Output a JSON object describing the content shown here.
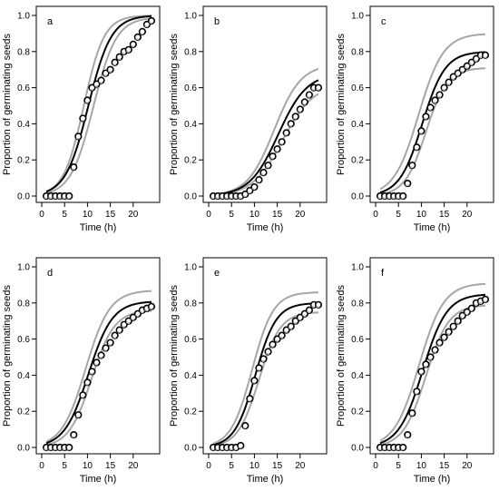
{
  "figure": {
    "y_axis_title": "Proportion of germinating seeds",
    "x_axis_title": "Time (h)"
  },
  "colors": {
    "fit_line": "#000000",
    "band_line": "#a6a6a6",
    "marker_stroke": "#000000",
    "marker_fill": "#ffffff",
    "marker_shade": "#bdbdbd"
  },
  "chart_data": [
    {
      "type": "scatter",
      "panel_label": "a",
      "xlabel": "Time (h)",
      "ylabel": "Proportion of germinating seeds",
      "xlim": [
        0,
        25
      ],
      "ylim": [
        0,
        1.0
      ],
      "x_ticks": [
        0,
        5,
        10,
        15,
        20
      ],
      "y_ticks": [
        0.0,
        0.2,
        0.4,
        0.6,
        0.8,
        1.0
      ],
      "x_tick_labels": [
        "0",
        "5",
        "10",
        "15",
        "20"
      ],
      "y_tick_labels": [
        "0.0",
        "0.2",
        "0.4",
        "0.6",
        "0.8",
        "1.0"
      ],
      "observed": {
        "x": [
          1,
          2,
          3,
          4,
          5,
          6,
          7,
          8,
          9,
          10,
          11,
          12,
          13,
          14,
          15,
          16,
          17,
          18,
          19,
          20,
          21,
          22,
          23,
          24
        ],
        "y": [
          0.0,
          0.0,
          0.0,
          0.0,
          0.0,
          0.0,
          0.16,
          0.33,
          0.43,
          0.53,
          0.6,
          0.62,
          0.64,
          0.68,
          0.7,
          0.74,
          0.77,
          0.8,
          0.81,
          0.84,
          0.88,
          0.91,
          0.95,
          0.97
        ]
      },
      "fit": {
        "type": "logistic",
        "asymptote": 1.0,
        "t50": 10.2,
        "slope": 0.4
      },
      "band_upper": {
        "type": "logistic",
        "asymptote": 1.0,
        "t50": 9.2,
        "slope": 0.45
      },
      "band_lower": {
        "type": "logistic",
        "asymptote": 0.99,
        "t50": 11.3,
        "slope": 0.4
      }
    },
    {
      "type": "scatter",
      "panel_label": "b",
      "xlabel": "Time (h)",
      "ylabel": "Proportion of germinating seeds",
      "xlim": [
        0,
        25
      ],
      "ylim": [
        0,
        1.0
      ],
      "x_ticks": [
        0,
        5,
        10,
        15,
        20
      ],
      "y_ticks": [
        0.0,
        0.2,
        0.4,
        0.6,
        0.8,
        1.0
      ],
      "x_tick_labels": [
        "0",
        "5",
        "10",
        "15",
        "20"
      ],
      "y_tick_labels": [
        "0.0",
        "0.2",
        "0.4",
        "0.6",
        "0.8",
        "1.0"
      ],
      "observed": {
        "x": [
          1,
          2,
          3,
          4,
          5,
          6,
          7,
          8,
          9,
          10,
          11,
          12,
          13,
          14,
          15,
          16,
          17,
          18,
          19,
          20,
          21,
          22,
          23,
          24
        ],
        "y": [
          0.0,
          0.0,
          0.0,
          0.0,
          0.0,
          0.0,
          0.0,
          0.01,
          0.03,
          0.05,
          0.09,
          0.13,
          0.17,
          0.22,
          0.26,
          0.3,
          0.35,
          0.4,
          0.44,
          0.48,
          0.52,
          0.56,
          0.6,
          0.6
        ]
      },
      "fit": {
        "type": "logistic",
        "asymptote": 0.68,
        "t50": 15.2,
        "slope": 0.32
      },
      "band_upper": {
        "type": "logistic",
        "asymptote": 0.73,
        "t50": 14.3,
        "slope": 0.34
      },
      "band_lower": {
        "type": "logistic",
        "asymptote": 0.62,
        "t50": 16.2,
        "slope": 0.3
      }
    },
    {
      "type": "scatter",
      "panel_label": "c",
      "xlabel": "Time (h)",
      "ylabel": "Proportion of germinating seeds",
      "xlim": [
        0,
        25
      ],
      "ylim": [
        0,
        1.0
      ],
      "x_ticks": [
        0,
        5,
        10,
        15,
        20
      ],
      "y_ticks": [
        0.0,
        0.2,
        0.4,
        0.6,
        0.8,
        1.0
      ],
      "x_tick_labels": [
        "0",
        "5",
        "10",
        "15",
        "20"
      ],
      "y_tick_labels": [
        "0.0",
        "0.2",
        "0.4",
        "0.6",
        "0.8",
        "1.0"
      ],
      "observed": {
        "x": [
          1,
          2,
          3,
          4,
          5,
          6,
          7,
          8,
          9,
          10,
          11,
          12,
          13,
          14,
          15,
          16,
          17,
          18,
          19,
          20,
          21,
          22,
          23,
          24
        ],
        "y": [
          0.0,
          0.0,
          0.0,
          0.0,
          0.0,
          0.0,
          0.07,
          0.17,
          0.27,
          0.36,
          0.44,
          0.49,
          0.53,
          0.56,
          0.6,
          0.63,
          0.66,
          0.68,
          0.7,
          0.72,
          0.74,
          0.76,
          0.78,
          0.78
        ]
      },
      "fit": {
        "type": "logistic",
        "asymptote": 0.8,
        "t50": 10.2,
        "slope": 0.4
      },
      "band_upper": {
        "type": "logistic",
        "asymptote": 0.9,
        "t50": 9.4,
        "slope": 0.37
      },
      "band_lower": {
        "type": "logistic",
        "asymptote": 0.71,
        "t50": 11.0,
        "slope": 0.43
      }
    },
    {
      "type": "scatter",
      "panel_label": "d",
      "xlabel": "Time (h)",
      "ylabel": "Proportion of germinating seeds",
      "xlim": [
        0,
        25
      ],
      "ylim": [
        0,
        1.0
      ],
      "x_ticks": [
        0,
        5,
        10,
        15,
        20
      ],
      "y_ticks": [
        0.0,
        0.2,
        0.4,
        0.6,
        0.8,
        1.0
      ],
      "x_tick_labels": [
        "0",
        "5",
        "10",
        "15",
        "20"
      ],
      "y_tick_labels": [
        "0.0",
        "0.2",
        "0.4",
        "0.6",
        "0.8",
        "1.0"
      ],
      "observed": {
        "x": [
          1,
          2,
          3,
          4,
          5,
          6,
          7,
          8,
          9,
          10,
          11,
          12,
          13,
          14,
          15,
          16,
          17,
          18,
          19,
          20,
          21,
          22,
          23,
          24
        ],
        "y": [
          0.0,
          0.0,
          0.0,
          0.0,
          0.0,
          0.0,
          0.07,
          0.18,
          0.29,
          0.36,
          0.42,
          0.47,
          0.51,
          0.55,
          0.58,
          0.62,
          0.65,
          0.68,
          0.7,
          0.72,
          0.74,
          0.76,
          0.77,
          0.78
        ]
      },
      "fit": {
        "type": "logistic",
        "asymptote": 0.81,
        "t50": 10.2,
        "slope": 0.38
      },
      "band_upper": {
        "type": "logistic",
        "asymptote": 0.87,
        "t50": 9.6,
        "slope": 0.38
      },
      "band_lower": {
        "type": "logistic",
        "asymptote": 0.76,
        "t50": 10.9,
        "slope": 0.4
      }
    },
    {
      "type": "scatter",
      "panel_label": "e",
      "xlabel": "Time (h)",
      "ylabel": "Proportion of germinating seeds",
      "xlim": [
        0,
        25
      ],
      "ylim": [
        0,
        1.0
      ],
      "x_ticks": [
        0,
        5,
        10,
        15,
        20
      ],
      "y_ticks": [
        0.0,
        0.2,
        0.4,
        0.6,
        0.8,
        1.0
      ],
      "x_tick_labels": [
        "0",
        "5",
        "10",
        "15",
        "20"
      ],
      "y_tick_labels": [
        "0.0",
        "0.2",
        "0.4",
        "0.6",
        "0.8",
        "1.0"
      ],
      "observed": {
        "x": [
          1,
          2,
          3,
          4,
          5,
          6,
          7,
          8,
          9,
          10,
          11,
          12,
          13,
          14,
          15,
          16,
          17,
          18,
          19,
          20,
          21,
          22,
          23,
          24
        ],
        "y": [
          0.0,
          0.0,
          0.0,
          0.0,
          0.0,
          0.0,
          0.01,
          0.12,
          0.27,
          0.37,
          0.44,
          0.49,
          0.53,
          0.57,
          0.6,
          0.62,
          0.65,
          0.67,
          0.7,
          0.72,
          0.74,
          0.76,
          0.79,
          0.79
        ]
      },
      "fit": {
        "type": "logistic",
        "asymptote": 0.8,
        "t50": 10.2,
        "slope": 0.44
      },
      "band_upper": {
        "type": "logistic",
        "asymptote": 0.86,
        "t50": 9.5,
        "slope": 0.43
      },
      "band_lower": {
        "type": "logistic",
        "asymptote": 0.75,
        "t50": 11.0,
        "slope": 0.43
      }
    },
    {
      "type": "scatter",
      "panel_label": "f",
      "xlabel": "Time (h)",
      "ylabel": "Proportion of germinating seeds",
      "xlim": [
        0,
        25
      ],
      "ylim": [
        0,
        1.0
      ],
      "x_ticks": [
        0,
        5,
        10,
        15,
        20
      ],
      "y_ticks": [
        0.0,
        0.2,
        0.4,
        0.6,
        0.8,
        1.0
      ],
      "x_tick_labels": [
        "0",
        "5",
        "10",
        "15",
        "20"
      ],
      "y_tick_labels": [
        "0.0",
        "0.2",
        "0.4",
        "0.6",
        "0.8",
        "1.0"
      ],
      "observed": {
        "x": [
          1,
          2,
          3,
          4,
          5,
          6,
          7,
          8,
          9,
          10,
          11,
          12,
          13,
          14,
          15,
          16,
          17,
          18,
          19,
          20,
          21,
          22,
          23,
          24
        ],
        "y": [
          0.0,
          0.0,
          0.0,
          0.0,
          0.0,
          0.0,
          0.07,
          0.19,
          0.31,
          0.42,
          0.46,
          0.5,
          0.54,
          0.58,
          0.61,
          0.64,
          0.67,
          0.7,
          0.73,
          0.75,
          0.77,
          0.8,
          0.81,
          0.82
        ]
      },
      "fit": {
        "type": "logistic",
        "asymptote": 0.85,
        "t50": 10.3,
        "slope": 0.38
      },
      "band_upper": {
        "type": "logistic",
        "asymptote": 0.91,
        "t50": 9.5,
        "slope": 0.37
      },
      "band_lower": {
        "type": "logistic",
        "asymptote": 0.79,
        "t50": 11.0,
        "slope": 0.4
      }
    }
  ]
}
